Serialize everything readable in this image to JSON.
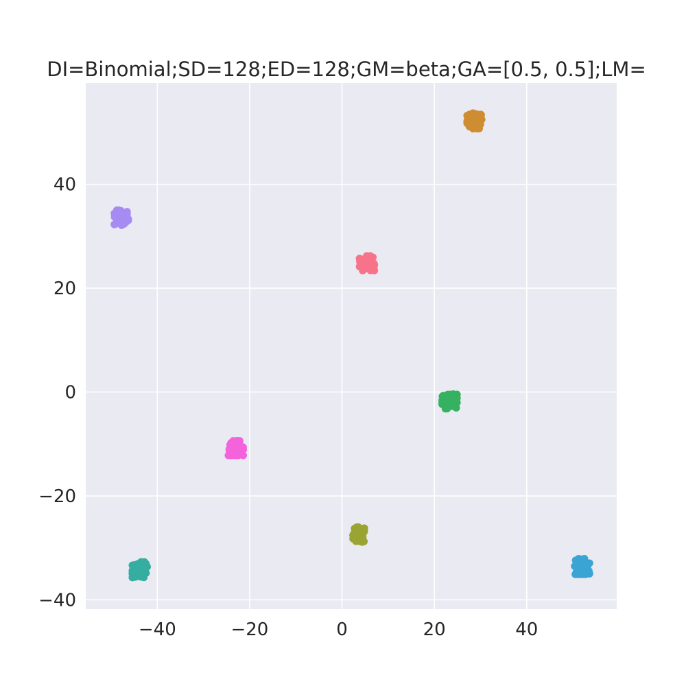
{
  "chart_data": {
    "type": "scatter",
    "title": "DI=Binomial;SD=128;ED=128;GM=beta;GA=[0.5, 0.5];LM=",
    "xlabel": "",
    "ylabel": "",
    "xlim": [
      -55.5,
      59.5
    ],
    "ylim": [
      -41.8,
      59.5
    ],
    "x_ticks": [
      -40,
      -20,
      0,
      20,
      40
    ],
    "y_ticks": [
      -40,
      -20,
      0,
      20,
      40
    ],
    "x_tick_labels": [
      "−40",
      "−20",
      "0",
      "20",
      "40"
    ],
    "y_tick_labels": [
      "−40",
      "−20",
      "0",
      "20",
      "40"
    ],
    "grid": true,
    "legend": "none",
    "background_color": "#eaeaf2",
    "clusters": [
      {
        "center": [
          28.7,
          52.2
        ],
        "spread": [
          1.6,
          1.5
        ],
        "color": "#cf8d33"
      },
      {
        "center": [
          -47.8,
          33.5
        ],
        "spread": [
          1.5,
          1.5
        ],
        "color": "#a58bf2"
      },
      {
        "center": [
          5.4,
          24.8
        ],
        "spread": [
          1.6,
          1.4
        ],
        "color": "#f6738a"
      },
      {
        "center": [
          23.3,
          -1.8
        ],
        "spread": [
          1.6,
          1.4
        ],
        "color": "#35b160"
      },
      {
        "center": [
          -23.0,
          -10.8
        ],
        "spread": [
          1.6,
          1.4
        ],
        "color": "#f462dc"
      },
      {
        "center": [
          3.7,
          -27.5
        ],
        "spread": [
          1.3,
          1.5
        ],
        "color": "#9aa433"
      },
      {
        "center": [
          -43.8,
          -34.2
        ],
        "spread": [
          1.6,
          1.5
        ],
        "color": "#35ada1"
      },
      {
        "center": [
          52.0,
          -33.6
        ],
        "spread": [
          1.6,
          1.5
        ],
        "color": "#3aa5d4"
      }
    ],
    "points_per_cluster": 70
  }
}
